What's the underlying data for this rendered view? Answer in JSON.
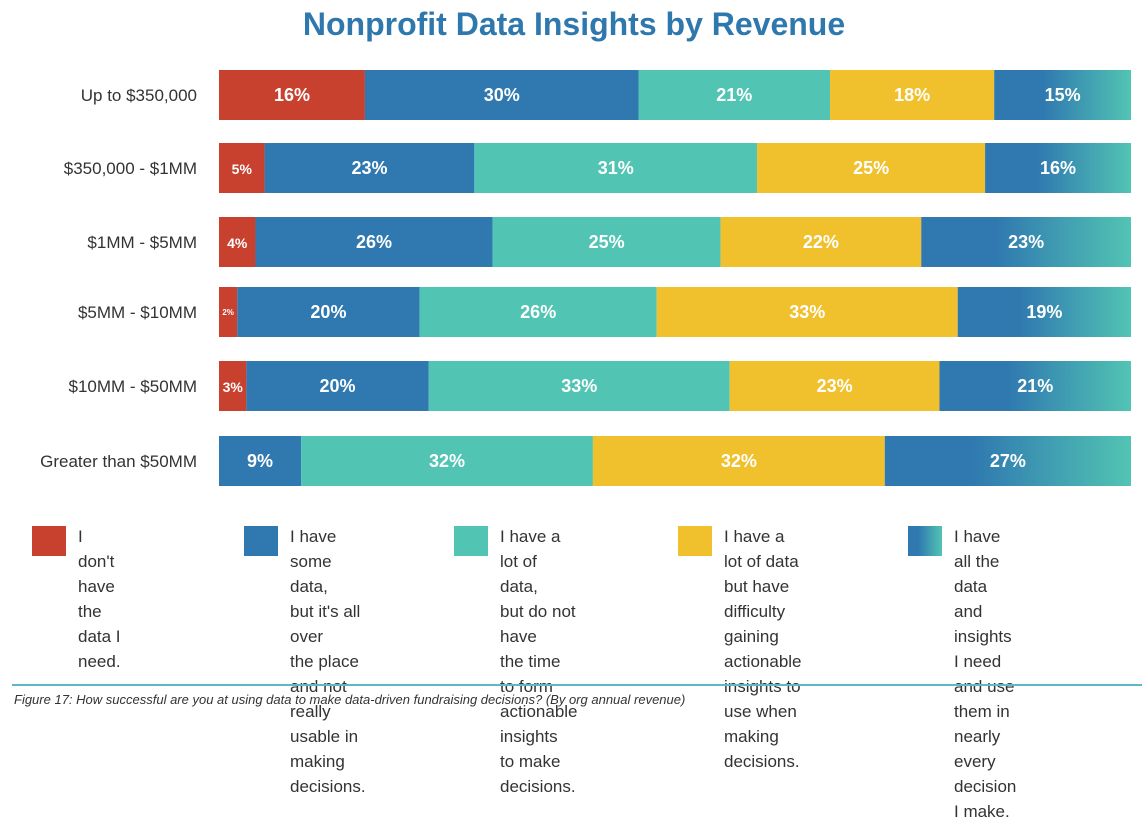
{
  "colors": {
    "red": "#c8402e",
    "blue": "#2f78b0",
    "teal": "#52c4b3",
    "yellow": "#f0c02d",
    "gradient_start": "#2f78b0",
    "gradient_end": "#52c4b3",
    "title": "#2e78ad"
  },
  "chart_data": {
    "type": "bar",
    "orientation": "horizontal",
    "stacked": true,
    "percent": true,
    "title": "Nonprofit Data Insights by Revenue",
    "categories": [
      "Up to $350,000",
      "$350,000 - $1MM",
      "$1MM - $5MM",
      "$5MM - $10MM",
      "$10MM - $50MM",
      "Greater than $50MM"
    ],
    "series": [
      {
        "name": "I don't have the data I need.",
        "color": "red",
        "values": [
          16,
          5,
          4,
          2,
          3,
          0
        ]
      },
      {
        "name": "I have some data, but it's all over the place and not really usable in making decisions.",
        "color": "blue",
        "values": [
          30,
          23,
          26,
          20,
          20,
          9
        ]
      },
      {
        "name": "I have a lot of data, but do not have the time to form actionable insights to make decisions.",
        "color": "teal",
        "values": [
          21,
          31,
          25,
          26,
          33,
          32
        ]
      },
      {
        "name": "I have a lot of data but have difficulty gaining actionable insights to use when making decisions.",
        "color": "yellow",
        "values": [
          18,
          25,
          22,
          33,
          23,
          32
        ]
      },
      {
        "name": "I have all the data and insights I need and use them in nearly every decision I make.",
        "color": "gradient",
        "values": [
          15,
          16,
          23,
          19,
          21,
          27
        ]
      }
    ],
    "legend_position": "bottom",
    "grid": false
  },
  "legend": [
    {
      "lines": [
        "I don't have the",
        "data I need."
      ],
      "color": "red"
    },
    {
      "lines": [
        "I have some data,",
        "but it's all over",
        "the place and not",
        "really usable in",
        "making decisions."
      ],
      "color": "blue"
    },
    {
      "lines": [
        "I have a lot of data,",
        "but do not have",
        "the time to form",
        "actionable insights",
        "to make decisions."
      ],
      "color": "teal"
    },
    {
      "lines": [
        "I have a lot of data",
        "but have difficulty",
        "gaining actionable",
        "insights to use when",
        "making decisions."
      ],
      "color": "yellow"
    },
    {
      "lines": [
        "I have all the data",
        "and insights I need",
        "and use them in",
        "nearly every",
        "decision I make."
      ],
      "color": "gradient"
    }
  ],
  "caption": "Figure 17: How successful are you at using data to make data-driven fundraising decisions? (By org annual revenue)"
}
